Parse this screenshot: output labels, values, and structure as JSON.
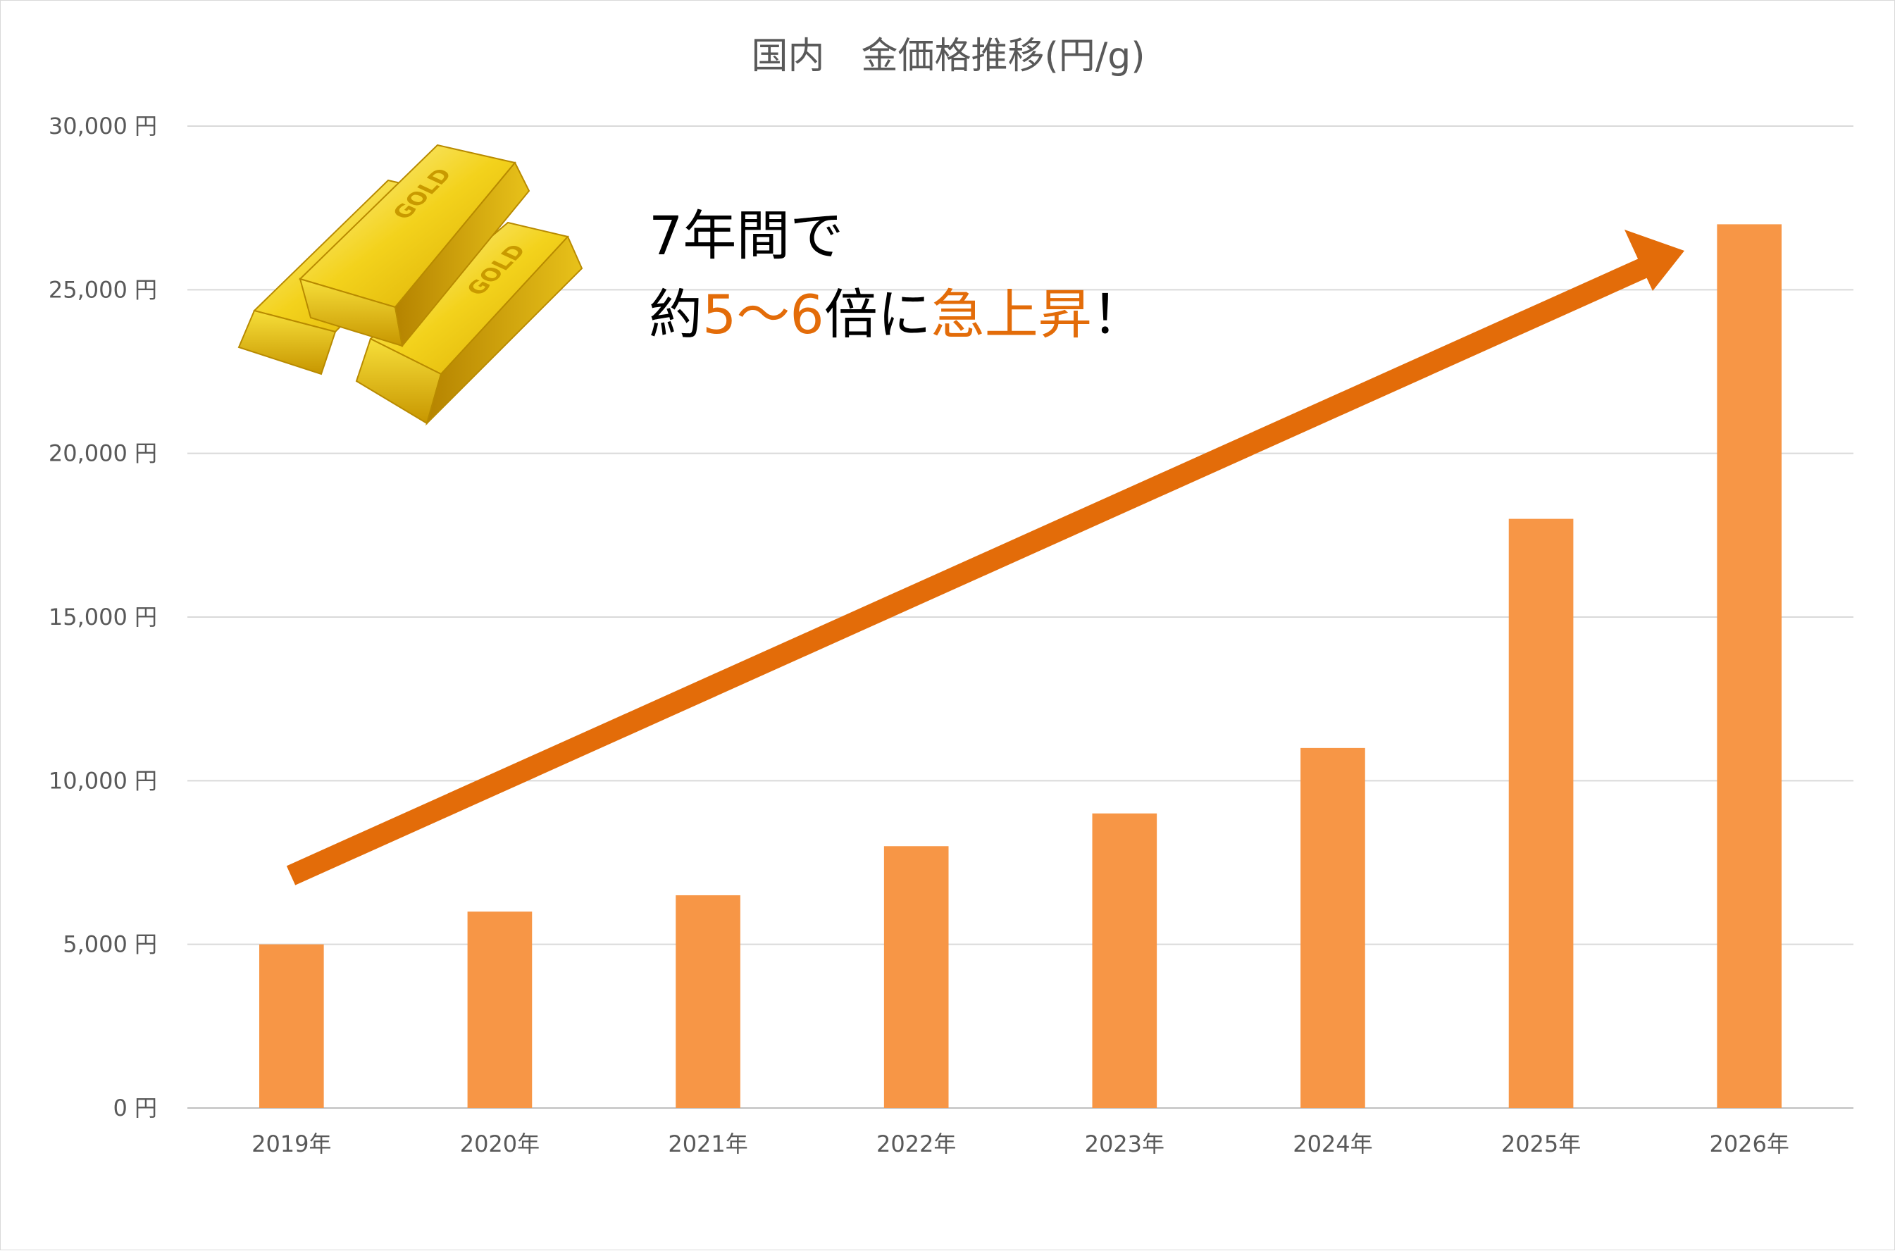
{
  "chart_data": {
    "type": "bar",
    "title": "国内　金価格推移(円/g)",
    "categories": [
      "2019年",
      "2020年",
      "2021年",
      "2022年",
      "2023年",
      "2024年",
      "2025年",
      "2026年"
    ],
    "values": [
      5000,
      6000,
      6500,
      8000,
      9000,
      11000,
      18000,
      27000
    ],
    "ylim": [
      0,
      30000
    ],
    "yticks": [
      0,
      5000,
      10000,
      15000,
      20000,
      25000,
      30000
    ],
    "ytick_labels": [
      "0 円",
      "5,000 円",
      "10,000 円",
      "15,000 円",
      "20,000 円",
      "25,000 円",
      "30,000 円"
    ],
    "grid": true,
    "bar_color": "#f79646"
  },
  "annotation": {
    "line1": "7年間で",
    "line2_prefix": "約",
    "line2_highlight1": "5～6",
    "line2_middle": "倍に",
    "line2_highlight2": "急上昇",
    "line2_suffix": "！",
    "text_color": "#000000",
    "highlight_color": "#e36c09",
    "arrow_color": "#e36c09"
  },
  "gold_image": {
    "icon": "gold-bars-icon",
    "bar_text": "GOLD"
  }
}
